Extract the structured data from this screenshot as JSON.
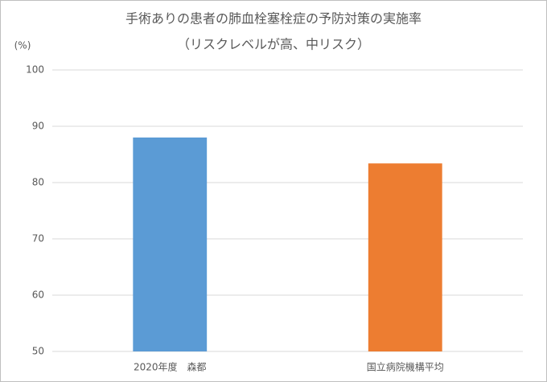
{
  "chart_data": {
    "type": "bar",
    "title": "手術ありの患者の肺血栓塞栓症の予防対策の実施率",
    "subtitle": "（リスクレベルが高、中リスク）",
    "y_label": "(%)",
    "categories": [
      "2020年度　森都",
      "国立病院機構平均"
    ],
    "values": [
      88.0,
      83.4
    ],
    "colors": [
      "#5b9bd5",
      "#ed7d31"
    ],
    "ylim": [
      50,
      100
    ],
    "yticks": [
      50,
      60,
      70,
      80,
      90,
      100
    ],
    "grid": true
  }
}
